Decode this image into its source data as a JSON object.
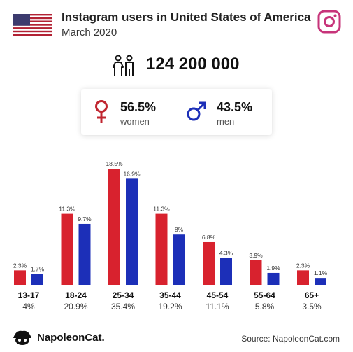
{
  "header": {
    "title": "Instagram users in United States of America",
    "subtitle": "March 2020"
  },
  "total_users": "124 200 000",
  "gender": {
    "women_pct": "56.5%",
    "women_label": "women",
    "men_pct": "43.5%",
    "men_label": "men"
  },
  "colors": {
    "women": "#d8222e",
    "men": "#1c2fb8",
    "women_icon": "#c0252f",
    "men_icon": "#1c2fb8",
    "instagram": "#c7347a"
  },
  "icons": {
    "flag": "usa-flag-icon",
    "instagram": "instagram-icon",
    "users": "people-icon",
    "female": "female-symbol-icon",
    "male": "male-symbol-icon",
    "brand": "napoleoncat-logo-icon"
  },
  "chart_data": {
    "type": "bar",
    "categories": [
      "13-17",
      "18-24",
      "25-34",
      "35-44",
      "45-54",
      "55-64",
      "65+"
    ],
    "category_shares": [
      "4%",
      "20.9%",
      "35.4%",
      "19.2%",
      "11.1%",
      "5.8%",
      "3.5%"
    ],
    "series": [
      {
        "values": [
          2.3,
          11.3,
          18.5,
          11.3,
          6.8,
          3.9,
          2.3
        ],
        "labels": [
          "2.3%",
          "11.3%",
          "18.5%",
          "11.3%",
          "6.8%",
          "3.9%",
          "2.3%"
        ]
      },
      {
        "values": [
          1.7,
          9.7,
          16.9,
          8,
          4.3,
          1.9,
          1.1
        ],
        "labels": [
          "1.7%",
          "9.7%",
          "16.9%",
          "8%",
          "4.3%",
          "1.9%",
          "1.1%"
        ]
      }
    ]
  },
  "footer": {
    "brand": "NapoleonCat.",
    "source": "Source: NapoleonCat.com"
  }
}
